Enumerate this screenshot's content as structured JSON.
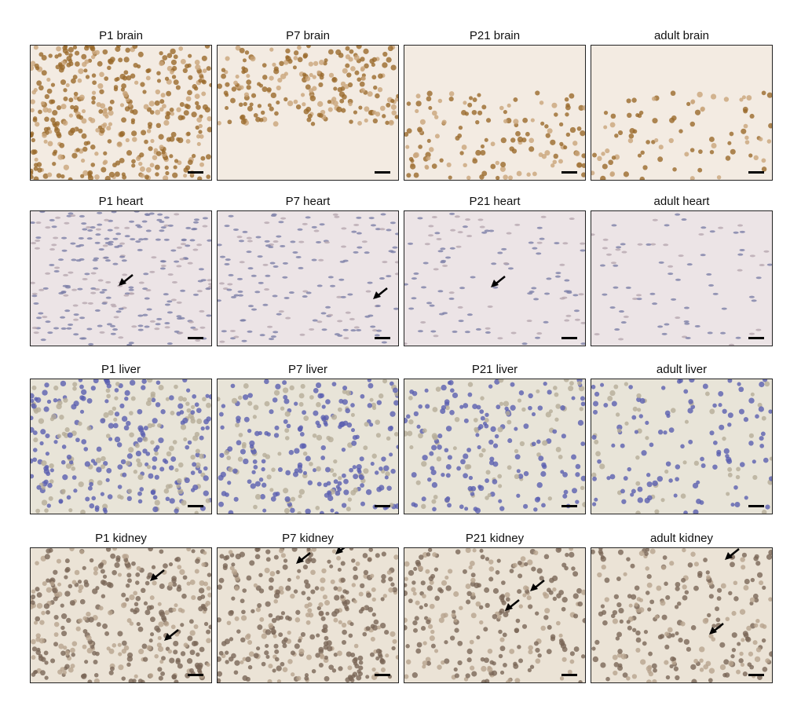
{
  "rows": [
    {
      "tissue": "brain",
      "bg": "#f3ebe2",
      "nuc": "#9a6a2c",
      "nuc2": "#c9a57a",
      "panels": [
        {
          "title": "P1 brain",
          "density": 420,
          "arrows": []
        },
        {
          "title": "P7 brain",
          "density": 220,
          "arrows": []
        },
        {
          "title": "P21 brain",
          "density": 140,
          "arrows": []
        },
        {
          "title": "adult brain",
          "density": 90,
          "arrows": []
        }
      ]
    },
    {
      "tissue": "heart",
      "bg": "#ece4e6",
      "nuc": "#7d80a8",
      "nuc2": "#b8a8b0",
      "panels": [
        {
          "title": "P1 heart",
          "density": 260,
          "arrows": [
            1
          ]
        },
        {
          "title": "P7 heart",
          "density": 160,
          "arrows": [
            1
          ]
        },
        {
          "title": "P21 heart",
          "density": 110,
          "arrows": [
            1
          ]
        },
        {
          "title": "adult heart",
          "density": 80,
          "arrows": []
        }
      ]
    },
    {
      "tissue": "liver",
      "bg": "#e8e4d8",
      "nuc": "#5a5fb0",
      "nuc2": "#b5ad98",
      "panels": [
        {
          "title": "P1 liver",
          "density": 330,
          "arrows": []
        },
        {
          "title": "P7 liver",
          "density": 280,
          "arrows": []
        },
        {
          "title": "P21 liver",
          "density": 220,
          "arrows": []
        },
        {
          "title": "adult liver",
          "density": 160,
          "arrows": []
        }
      ]
    },
    {
      "tissue": "kidney",
      "bg": "#ebe3d6",
      "nuc": "#7a6658",
      "nuc2": "#b8a48e",
      "panels": [
        {
          "title": "P1 kidney",
          "density": 360,
          "arrows": [
            1,
            1
          ]
        },
        {
          "title": "P7 kidney",
          "density": 340,
          "arrows": [
            1,
            1
          ]
        },
        {
          "title": "P21 kidney",
          "density": 260,
          "arrows": [
            1,
            1
          ]
        },
        {
          "title": "adult kidney",
          "density": 240,
          "arrows": [
            1,
            1
          ]
        }
      ]
    }
  ]
}
